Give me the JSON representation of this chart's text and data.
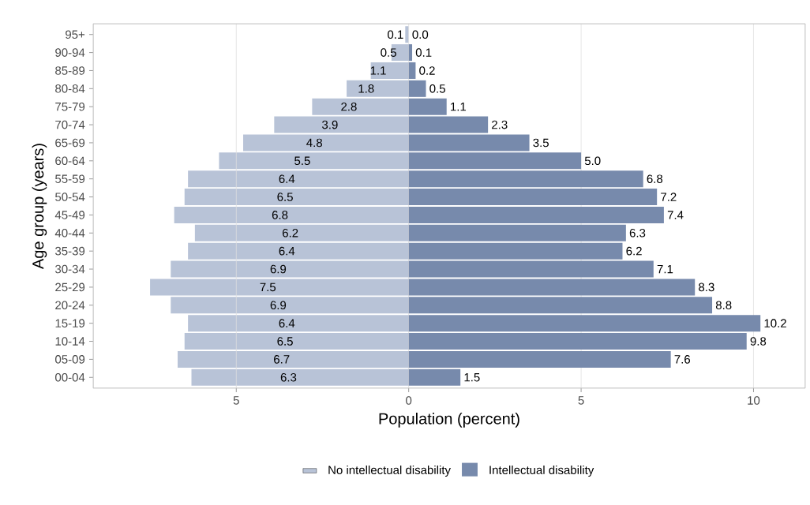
{
  "chart_data": {
    "type": "bar",
    "orientation": "horizontal",
    "xlabel": "Population (percent)",
    "ylabel": "Age group (years)",
    "categories": [
      "95+",
      "90-94",
      "85-89",
      "80-84",
      "75-79",
      "70-74",
      "65-69",
      "60-64",
      "55-59",
      "50-54",
      "45-49",
      "40-44",
      "35-39",
      "30-34",
      "25-29",
      "20-24",
      "15-19",
      "10-14",
      "05-09",
      "00-04"
    ],
    "series": [
      {
        "name": "No intellectual disability",
        "color": "#b8c3d7",
        "values": [
          0.1,
          0.5,
          1.1,
          1.8,
          2.8,
          3.9,
          4.8,
          5.5,
          6.4,
          6.5,
          6.8,
          6.2,
          6.4,
          6.9,
          7.5,
          6.9,
          6.4,
          6.5,
          6.7,
          6.3
        ],
        "base": [
          -0.1,
          -0.5,
          -1.1,
          -1.8,
          -2.8,
          -3.9,
          -4.8,
          -5.5,
          -6.4,
          -6.5,
          -6.8,
          -6.2,
          -6.4,
          -6.9,
          -7.5,
          -6.9,
          -6.4,
          -6.5,
          -6.7,
          -6.3
        ],
        "value_labels": [
          "0.1",
          "0.5",
          "1.1",
          "1.8",
          "2.8",
          "3.9",
          "4.8",
          "5.5",
          "6.4",
          "6.5",
          "6.8",
          "6.2",
          "6.4",
          "6.9",
          "7.5",
          "6.9",
          "6.4",
          "6.5",
          "6.7",
          "6.3"
        ]
      },
      {
        "name": "Intellectual disability",
        "color": "#778aac",
        "values": [
          0.0,
          0.1,
          0.2,
          0.5,
          1.1,
          2.3,
          3.5,
          5.0,
          6.8,
          7.2,
          7.4,
          6.3,
          6.2,
          7.1,
          8.3,
          8.8,
          10.2,
          9.8,
          7.6,
          1.5
        ],
        "value_labels": [
          "0.0",
          "0.1",
          "0.2",
          "0.5",
          "1.1",
          "2.3",
          "3.5",
          "5.0",
          "6.8",
          "7.2",
          "7.4",
          "6.3",
          "6.2",
          "7.1",
          "8.3",
          "8.8",
          "10.2",
          "9.8",
          "7.6",
          "1.5"
        ]
      }
    ],
    "xlim": [
      -9.15,
      11.5
    ],
    "xticks": [
      {
        "value": -5,
        "label": "5"
      },
      0,
      5,
      10
    ],
    "grid": "x",
    "legend": "bottom"
  }
}
